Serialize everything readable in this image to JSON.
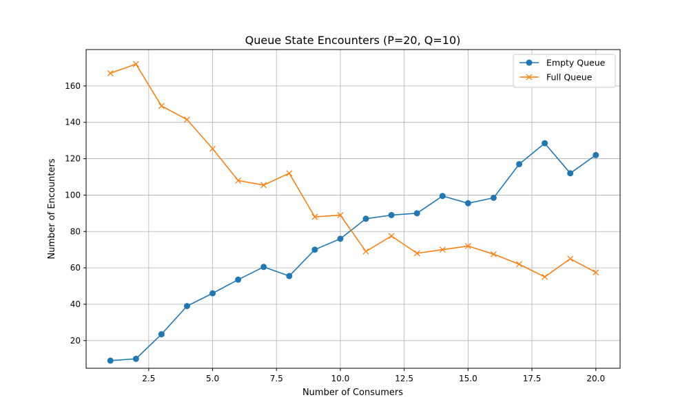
{
  "chart_data": {
    "type": "line",
    "title": "Queue State Encounters (P=20, Q=10)",
    "xlabel": "Number of Consumers",
    "ylabel": "Number of Encounters",
    "x": [
      1,
      2,
      3,
      4,
      5,
      6,
      7,
      8,
      9,
      10,
      11,
      12,
      13,
      14,
      15,
      16,
      17,
      18,
      19,
      20
    ],
    "xlim": [
      0.05,
      20.95
    ],
    "ylim": [
      4.8,
      180
    ],
    "xticks": [
      2.5,
      5.0,
      7.5,
      10.0,
      12.5,
      15.0,
      17.5,
      20.0
    ],
    "xtick_labels": [
      "2.5",
      "5.0",
      "7.5",
      "10.0",
      "12.5",
      "15.0",
      "17.5",
      "20.0"
    ],
    "yticks": [
      20,
      40,
      60,
      80,
      100,
      120,
      140,
      160
    ],
    "ytick_labels": [
      "20",
      "40",
      "60",
      "80",
      "100",
      "120",
      "140",
      "160"
    ],
    "grid": true,
    "legend_position": "top-right",
    "series": [
      {
        "name": "Empty Queue",
        "color": "#1f77b4",
        "marker": "circle",
        "values": [
          9,
          10,
          23.5,
          39,
          46,
          53.5,
          60.5,
          55.5,
          70,
          76,
          87,
          89,
          90,
          99.5,
          95.5,
          98.5,
          117,
          128.5,
          112,
          122
        ]
      },
      {
        "name": "Full Queue",
        "color": "#ff7f0e",
        "marker": "x",
        "values": [
          167,
          172,
          149,
          141.5,
          125.5,
          108,
          105.5,
          112,
          88,
          89,
          69,
          77.5,
          68,
          70,
          72,
          67.5,
          62,
          55,
          65,
          57.5
        ]
      }
    ]
  }
}
